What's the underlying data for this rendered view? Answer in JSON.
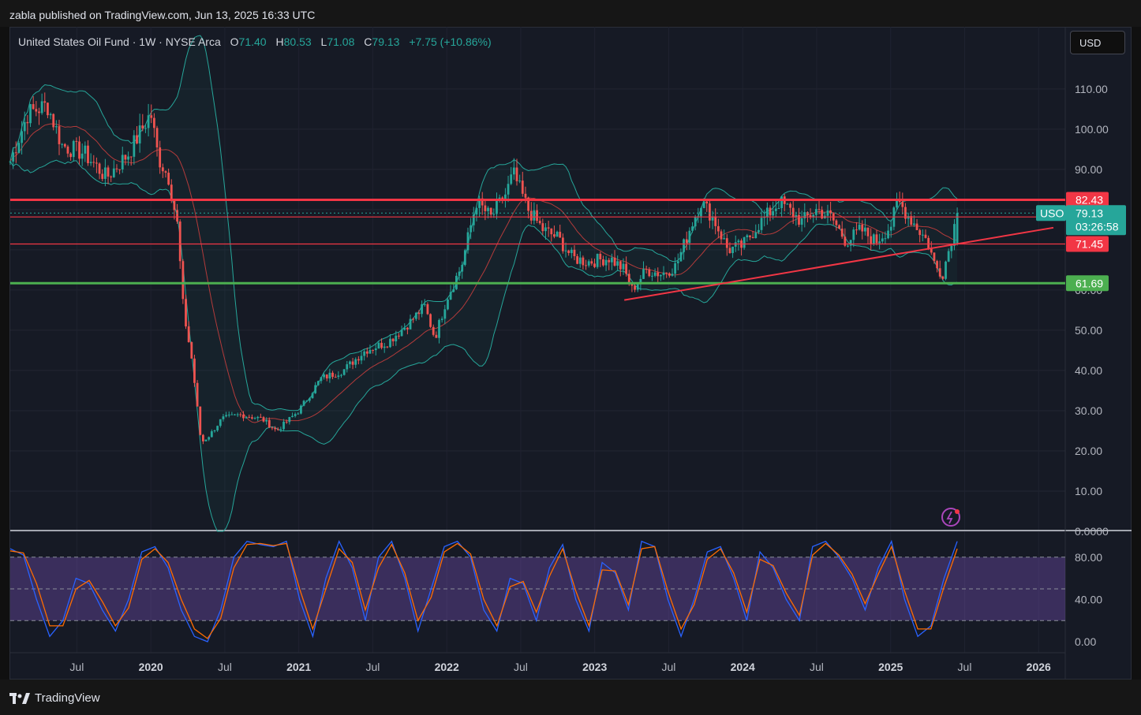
{
  "header": {
    "publisher": "zabla published on TradingView.com, Jun 13, 2025 16:33 UTC"
  },
  "legend": {
    "symbol": "United States Oil Fund · 1W · NYSE Arca",
    "open_label": "O",
    "open": "71.40",
    "high_label": "H",
    "high": "80.53",
    "low_label": "L",
    "low": "71.08",
    "close_label": "C",
    "close": "79.13",
    "change": "+7.75 (+10.86%)"
  },
  "currency": "USD",
  "footer": {
    "brand": "TradingView"
  },
  "colors": {
    "up": "#26a69a",
    "down": "#ef5350",
    "bollinger": "#26a69a",
    "basis": "#b33b3b",
    "resistance": "#f23645",
    "support": "#4caf50",
    "oscillator_k": "#2962ff",
    "oscillator_d": "#ff6d00",
    "oscillator_band": "#7e57c2"
  },
  "chart_data": [
    {
      "type": "candlestick",
      "name": "United States Oil Fund",
      "timeframe": "1W",
      "ylim": [
        0,
        118
      ],
      "y_ticks": [
        "110.00",
        "100.00",
        "90.00",
        "60.00",
        "50.00",
        "40.00",
        "30.00",
        "20.00",
        "10.00",
        "0.0000"
      ],
      "x_ticks": [
        "Jul",
        "2020",
        "Jul",
        "2021",
        "Jul",
        "2022",
        "Jul",
        "2023",
        "Jul",
        "2024",
        "Jul",
        "2025",
        "Jul",
        "2026"
      ],
      "x_ticks_years": [
        "2020",
        "2021",
        "2022",
        "2023",
        "2024",
        "2025",
        "2026"
      ],
      "price_path": [
        [
          2019.05,
          92
        ],
        [
          2019.17,
          104
        ],
        [
          2019.3,
          106
        ],
        [
          2019.4,
          96
        ],
        [
          2019.55,
          94
        ],
        [
          2019.7,
          88
        ],
        [
          2019.85,
          94
        ],
        [
          2020.0,
          104
        ],
        [
          2020.05,
          93
        ],
        [
          2020.12,
          88
        ],
        [
          2020.18,
          76
        ],
        [
          2020.22,
          55
        ],
        [
          2020.28,
          42
        ],
        [
          2020.34,
          22
        ],
        [
          2020.4,
          24
        ],
        [
          2020.48,
          28
        ],
        [
          2020.6,
          29
        ],
        [
          2020.75,
          28
        ],
        [
          2020.85,
          25
        ],
        [
          2021.0,
          30
        ],
        [
          2021.15,
          38
        ],
        [
          2021.3,
          40
        ],
        [
          2021.45,
          45
        ],
        [
          2021.6,
          47
        ],
        [
          2021.75,
          52
        ],
        [
          2021.85,
          56
        ],
        [
          2021.92,
          48
        ],
        [
          2022.0,
          58
        ],
        [
          2022.1,
          66
        ],
        [
          2022.2,
          82
        ],
        [
          2022.3,
          78
        ],
        [
          2022.4,
          84
        ],
        [
          2022.45,
          89
        ],
        [
          2022.55,
          80
        ],
        [
          2022.65,
          75
        ],
        [
          2022.75,
          73
        ],
        [
          2022.85,
          68
        ],
        [
          2022.95,
          67
        ],
        [
          2023.1,
          68
        ],
        [
          2023.2,
          65
        ],
        [
          2023.25,
          60
        ],
        [
          2023.35,
          65
        ],
        [
          2023.45,
          64
        ],
        [
          2023.55,
          66
        ],
        [
          2023.65,
          76
        ],
        [
          2023.72,
          82
        ],
        [
          2023.8,
          78
        ],
        [
          2023.9,
          70
        ],
        [
          2024.0,
          71
        ],
        [
          2024.1,
          76
        ],
        [
          2024.25,
          82
        ],
        [
          2024.4,
          77
        ],
        [
          2024.5,
          80
        ],
        [
          2024.6,
          78
        ],
        [
          2024.7,
          72
        ],
        [
          2024.8,
          75
        ],
        [
          2024.9,
          72
        ],
        [
          2025.0,
          76
        ],
        [
          2025.05,
          82
        ],
        [
          2025.15,
          77
        ],
        [
          2025.25,
          72
        ],
        [
          2025.3,
          66
        ],
        [
          2025.35,
          64
        ],
        [
          2025.4,
          71
        ],
        [
          2025.45,
          79.13
        ]
      ],
      "levels": [
        {
          "label": "82.43",
          "value": 82.43,
          "color": "#f23645"
        },
        {
          "label": "78.17",
          "value": 78.17,
          "color": "#f23645"
        },
        {
          "label": "71.45",
          "value": 71.45,
          "color": "#f23645"
        },
        {
          "label": "61.69",
          "value": 61.69,
          "color": "#4caf50"
        }
      ],
      "current": {
        "symbol": "USO",
        "price": "79.13",
        "countdown": "03:26:58"
      },
      "trendline": {
        "start": [
          2023.2,
          57.5
        ],
        "end": [
          2026.1,
          75.5
        ]
      }
    },
    {
      "type": "line",
      "name": "Stochastic RSI",
      "ylim": [
        0,
        100
      ],
      "y_ticks": [
        "80.00",
        "40.00",
        "0.00"
      ],
      "bands": {
        "upper": 80,
        "middle": 50,
        "lower": 20
      },
      "series": [
        {
          "values": [
            88,
            82,
            40,
            5,
            20,
            60,
            55,
            30,
            10,
            40,
            85,
            90,
            70,
            30,
            5,
            0,
            30,
            80,
            95,
            92,
            90,
            95,
            40,
            5,
            60,
            95,
            70,
            20,
            80,
            95,
            60,
            10,
            50,
            90,
            95,
            80,
            30,
            10,
            60,
            55,
            20,
            70,
            92,
            40,
            10,
            75,
            65,
            30,
            95,
            90,
            40,
            5,
            40,
            85,
            90,
            60,
            20,
            85,
            70,
            40,
            20,
            90,
            95,
            80,
            60,
            30,
            70,
            95,
            40,
            5,
            15,
            60,
            95
          ]
        },
        {
          "values": [
            86,
            84,
            55,
            15,
            15,
            50,
            58,
            38,
            15,
            32,
            78,
            88,
            75,
            40,
            12,
            3,
            22,
            70,
            92,
            93,
            91,
            93,
            50,
            12,
            50,
            88,
            75,
            30,
            70,
            92,
            65,
            20,
            42,
            85,
            93,
            83,
            40,
            15,
            52,
            57,
            28,
            62,
            88,
            48,
            15,
            68,
            67,
            35,
            88,
            90,
            48,
            12,
            35,
            78,
            88,
            65,
            28,
            78,
            72,
            46,
            25,
            82,
            93,
            82,
            64,
            36,
            64,
            90,
            48,
            12,
            12,
            52,
            88
          ]
        }
      ]
    }
  ]
}
